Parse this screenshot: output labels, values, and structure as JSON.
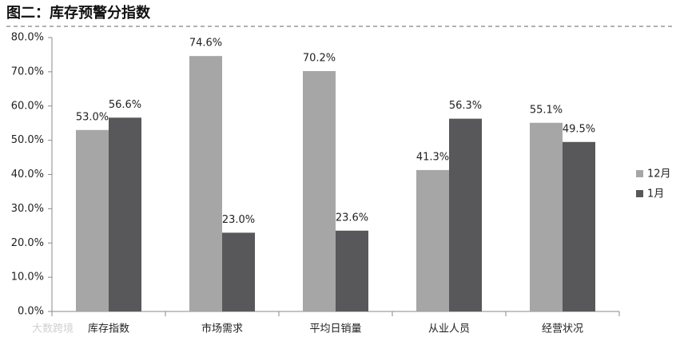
{
  "chart_data": {
    "type": "bar",
    "title": "图二：库存预警分指数",
    "categories": [
      "库存指数",
      "市场需求",
      "平均日销量",
      "从业人员",
      "经营状况"
    ],
    "series": [
      {
        "name": "12月",
        "color": "#a6a6a6",
        "values": [
          53.0,
          74.6,
          70.2,
          41.3,
          55.1
        ],
        "value_labels": [
          "53.0%",
          "74.6%",
          "70.2%",
          "41.3%",
          "55.1%"
        ]
      },
      {
        "name": "1月",
        "color": "#58585a",
        "values": [
          56.6,
          23.0,
          23.6,
          56.3,
          49.5
        ],
        "value_labels": [
          "56.6%",
          "23.0%",
          "23.6%",
          "56.3%",
          "49.5%"
        ]
      }
    ],
    "ylim": [
      0,
      80
    ],
    "yticks": [
      {
        "value": 0,
        "label": "0.0%"
      },
      {
        "value": 10,
        "label": "10.0%"
      },
      {
        "value": 20,
        "label": "20.0%"
      },
      {
        "value": 30,
        "label": "30.0%"
      },
      {
        "value": 40,
        "label": "40.0%"
      },
      {
        "value": 50,
        "label": "50.0%"
      },
      {
        "value": 60,
        "label": "60.0%"
      },
      {
        "value": 70,
        "label": "70.0%"
      },
      {
        "value": 80,
        "label": "80.0%"
      }
    ],
    "grid": false,
    "legend": "right",
    "watermark": "大数跨境"
  }
}
